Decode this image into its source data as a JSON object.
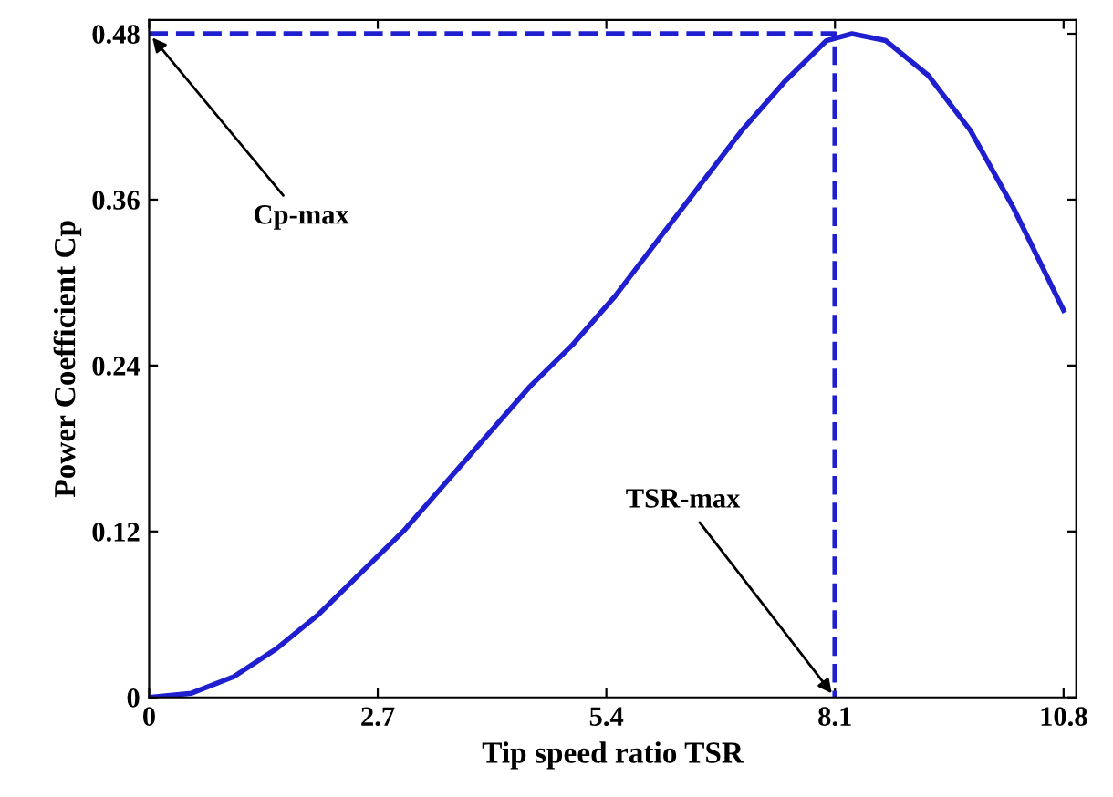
{
  "chart_data": {
    "type": "line",
    "xlabel": "Tip speed ratio TSR",
    "ylabel": "Power Coefficient Cp",
    "xlim": [
      0,
      10.95
    ],
    "ylim": [
      0,
      0.49
    ],
    "xticks": [
      0,
      2.7,
      5.4,
      8.1,
      10.8
    ],
    "yticks": [
      0,
      0.12,
      0.24,
      0.36,
      0.48
    ],
    "marker": "none",
    "series": [
      {
        "color": "#1f1fd0",
        "line_style": "solid",
        "x": [
          0,
          0.5,
          1,
          1.5,
          2,
          2.5,
          3,
          3.5,
          4,
          4.5,
          5,
          5.5,
          6,
          6.5,
          7,
          7.5,
          8,
          8.3,
          8.7,
          9.2,
          9.7,
          10.2,
          10.8
        ],
        "values": [
          0,
          0.003,
          0.015,
          0.035,
          0.06,
          0.09,
          0.12,
          0.155,
          0.19,
          0.225,
          0.255,
          0.29,
          0.33,
          0.37,
          0.41,
          0.445,
          0.475,
          0.48,
          0.475,
          0.45,
          0.41,
          0.355,
          0.28
        ]
      },
      {
        "color": "#1f1fd0",
        "line_style": "dashed",
        "x": [
          0,
          8.1,
          8.1
        ],
        "values": [
          0.48,
          0.48,
          0
        ]
      }
    ],
    "annotations": [
      {
        "text": "Cp-max",
        "x": 0,
        "y": 0.48
      },
      {
        "text": "TSR-max",
        "x": 8.1,
        "y": 0
      }
    ]
  }
}
